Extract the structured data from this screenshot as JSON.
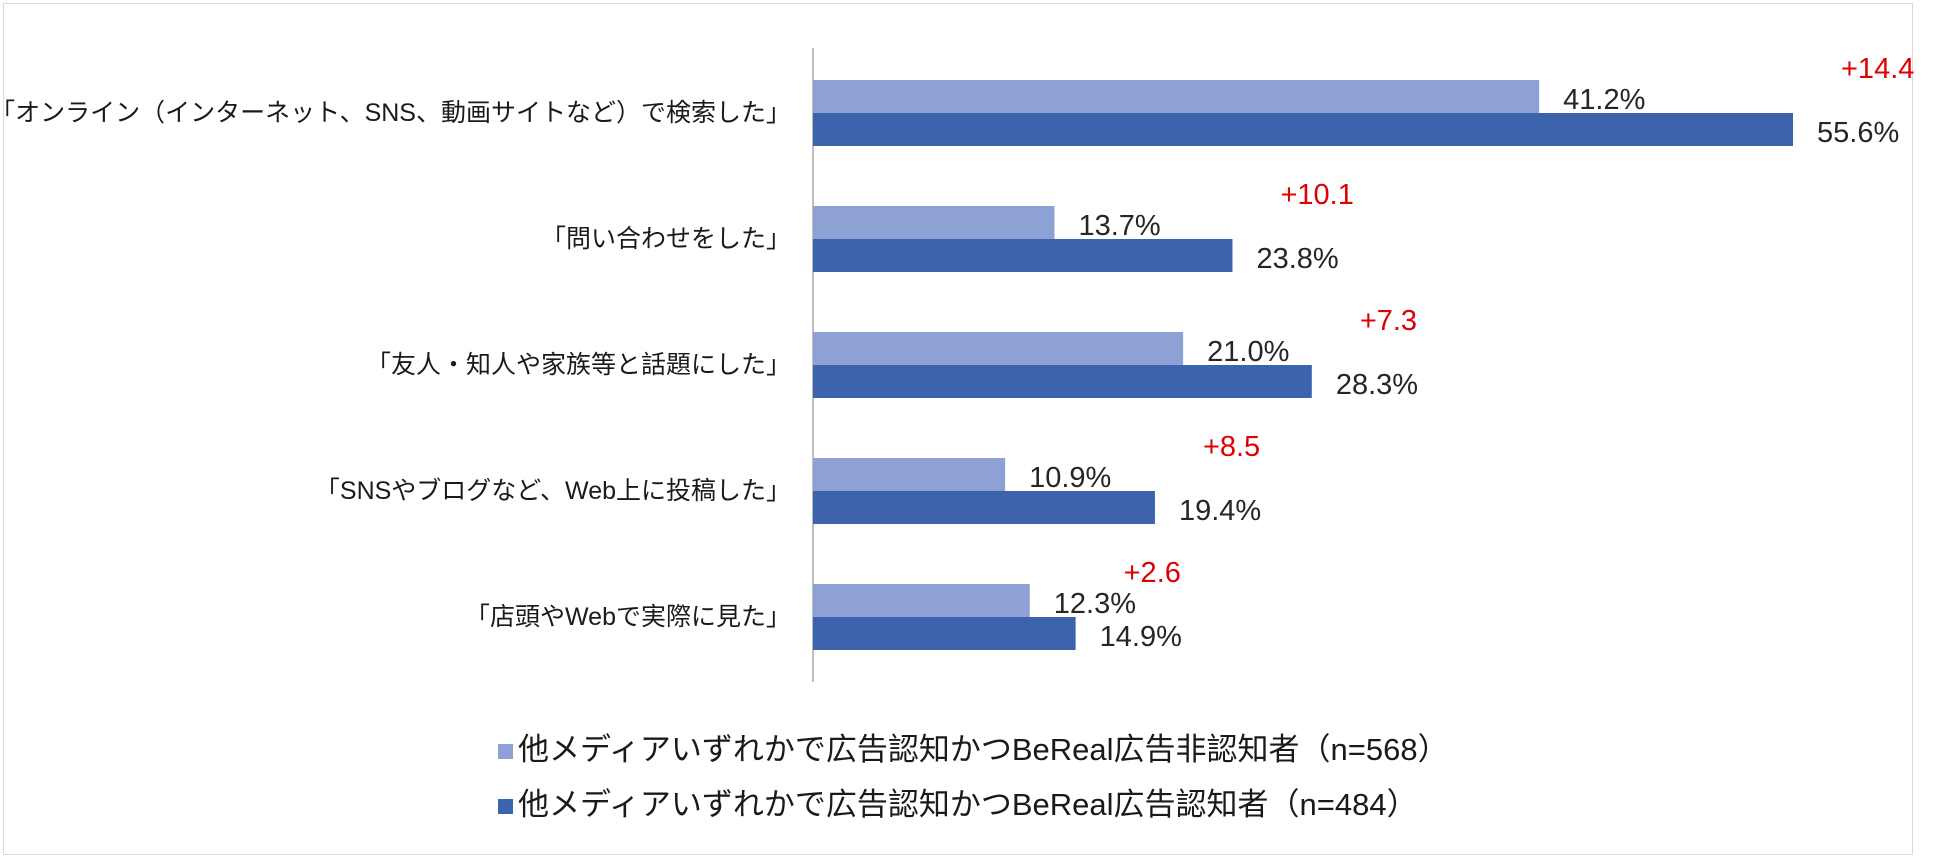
{
  "chart_data": {
    "type": "bar",
    "orientation": "horizontal",
    "categories": [
      "「オンライン（インターネット、SNS、動画サイトなど）で検索した」",
      "「問い合わせをした」",
      "「友人・知人や家族等と話題にした」",
      "「SNSやブログなど、Web上に投稿した」",
      "「店頭やWebで実際に見た」"
    ],
    "series": [
      {
        "name": "他メディアいずれかで広告認知かつBeReal広告非認知者（n=568）",
        "color": "#8ea1d4",
        "values": [
          41.2,
          13.7,
          21.0,
          10.9,
          12.3
        ],
        "labels": [
          "41.2%",
          "13.7%",
          "21.0%",
          "10.9%",
          "12.3%"
        ]
      },
      {
        "name": "他メディアいずれかで広告認知かつBeReal広告認知者（n=484）",
        "color": "#3d63ad",
        "values": [
          55.6,
          23.8,
          28.3,
          19.4,
          14.9
        ],
        "labels": [
          "55.6%",
          "23.8%",
          "28.3%",
          "19.4%",
          "14.9%"
        ]
      }
    ],
    "differences": [
      "+14.4",
      "+10.1",
      "+7.3",
      "+8.5",
      "+2.6"
    ],
    "difference_color": "#e00000",
    "xlim": [
      0,
      60
    ],
    "grid": false,
    "legend_position": "bottom"
  }
}
